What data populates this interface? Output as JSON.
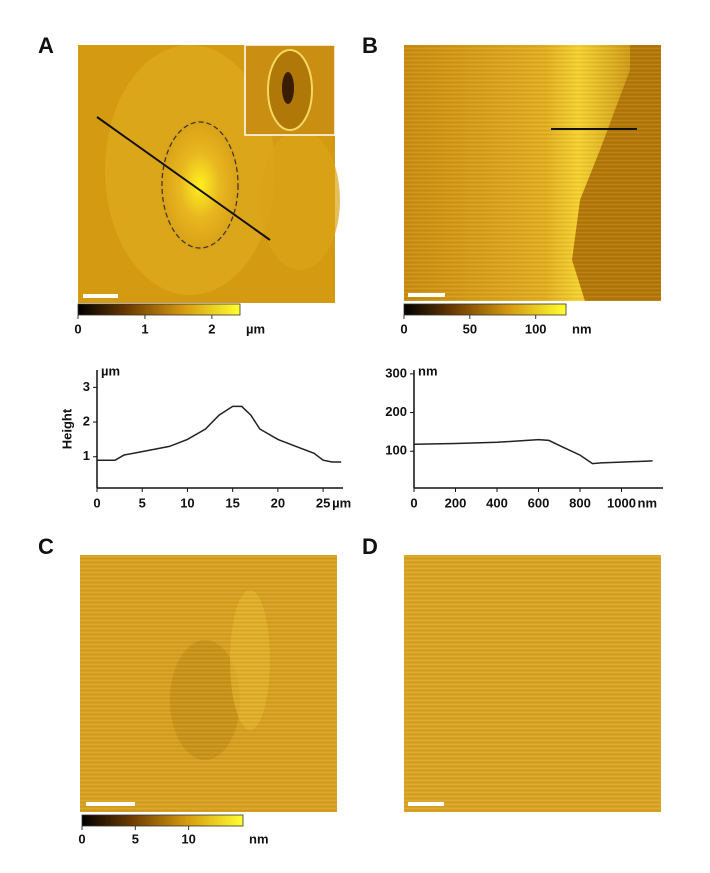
{
  "panels": {
    "labels": [
      "A",
      "B",
      "C",
      "D"
    ]
  },
  "colorbars": [
    {
      "ticks": [
        0,
        1,
        2
      ],
      "unit": "µm",
      "lim": [
        0,
        2.42
      ]
    },
    {
      "ticks": [
        0,
        50,
        100
      ],
      "unit": "nm",
      "lim": [
        0,
        123
      ]
    },
    {
      "ticks": [
        0,
        5,
        10
      ],
      "unit": "nm",
      "lim": [
        0,
        15.1
      ]
    }
  ],
  "chart_data": [
    {
      "type": "line",
      "ylabel": "Height",
      "yunit": "µm",
      "xunit": "µm",
      "color": "#222222",
      "x": [
        0,
        1,
        2,
        3,
        5,
        8,
        10,
        12,
        13.5,
        15,
        16,
        17,
        18,
        20,
        22,
        24,
        25,
        26,
        27
      ],
      "values": [
        0.9,
        0.9,
        0.9,
        1.05,
        1.15,
        1.3,
        1.5,
        1.8,
        2.2,
        2.45,
        2.45,
        2.2,
        1.8,
        1.5,
        1.3,
        1.1,
        0.9,
        0.85,
        0.85
      ],
      "xlim": [
        0,
        27.2
      ],
      "xticks": [
        0,
        5,
        10,
        15,
        20,
        25
      ],
      "ylim": [
        0.1,
        3.5
      ],
      "yticks": [
        1,
        2,
        3
      ]
    },
    {
      "type": "line",
      "yunit": "nm",
      "xunit": "nm",
      "color": "#222222",
      "x": [
        0,
        200,
        400,
        600,
        650,
        700,
        800,
        860,
        900,
        1000,
        1150
      ],
      "values": [
        118,
        120,
        123,
        130,
        128,
        115,
        90,
        68,
        70,
        72,
        75
      ],
      "xlim": [
        0,
        1200
      ],
      "xticks": [
        0,
        200,
        400,
        600,
        800,
        1000
      ],
      "ylim": [
        5,
        310
      ],
      "yticks": [
        100,
        200,
        300
      ]
    }
  ]
}
